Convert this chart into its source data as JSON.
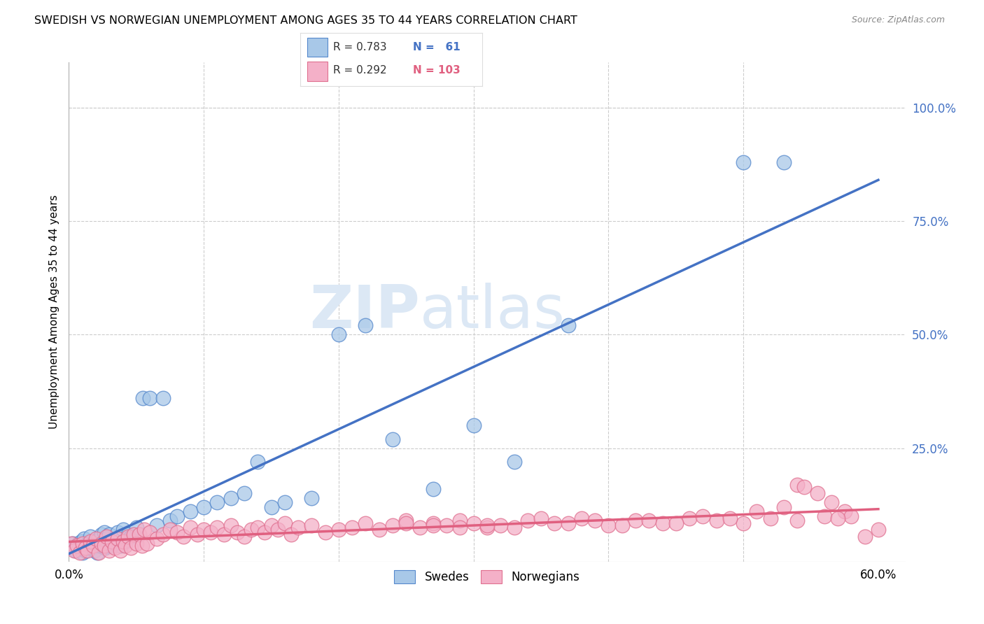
{
  "title": "SWEDISH VS NORWEGIAN UNEMPLOYMENT AMONG AGES 35 TO 44 YEARS CORRELATION CHART",
  "source": "Source: ZipAtlas.com",
  "ylabel": "Unemployment Among Ages 35 to 44 years",
  "xlim": [
    0.0,
    0.62
  ],
  "ylim": [
    0.0,
    1.1
  ],
  "xticks": [
    0.0,
    0.1,
    0.2,
    0.3,
    0.4,
    0.5,
    0.6
  ],
  "xticklabels": [
    "0.0%",
    "",
    "",
    "",
    "",
    "",
    "60.0%"
  ],
  "yticks_right": [
    0.0,
    0.25,
    0.5,
    0.75,
    1.0
  ],
  "yticklabels_right": [
    "",
    "25.0%",
    "50.0%",
    "75.0%",
    "100.0%"
  ],
  "swedish_color": "#a8c8e8",
  "norwegian_color": "#f4b0c8",
  "swedish_edge_color": "#5588cc",
  "norwegian_edge_color": "#e07090",
  "swedish_line_color": "#4472c4",
  "norwegian_line_color": "#e06080",
  "watermark_color": "#dce8f5",
  "swedish_x": [
    0.003,
    0.004,
    0.005,
    0.006,
    0.007,
    0.008,
    0.009,
    0.01,
    0.011,
    0.012,
    0.013,
    0.014,
    0.015,
    0.016,
    0.017,
    0.018,
    0.019,
    0.02,
    0.021,
    0.022,
    0.023,
    0.024,
    0.025,
    0.026,
    0.027,
    0.028,
    0.029,
    0.03,
    0.032,
    0.034,
    0.036,
    0.038,
    0.04,
    0.042,
    0.044,
    0.046,
    0.05,
    0.055,
    0.06,
    0.065,
    0.07,
    0.075,
    0.08,
    0.09,
    0.1,
    0.11,
    0.12,
    0.13,
    0.14,
    0.15,
    0.16,
    0.18,
    0.2,
    0.22,
    0.24,
    0.27,
    0.3,
    0.33,
    0.37,
    0.5,
    0.53
  ],
  "swedish_y": [
    0.04,
    0.03,
    0.025,
    0.035,
    0.04,
    0.03,
    0.045,
    0.02,
    0.05,
    0.025,
    0.03,
    0.04,
    0.035,
    0.055,
    0.03,
    0.04,
    0.025,
    0.045,
    0.02,
    0.05,
    0.035,
    0.06,
    0.04,
    0.065,
    0.03,
    0.05,
    0.035,
    0.06,
    0.035,
    0.04,
    0.065,
    0.035,
    0.07,
    0.045,
    0.06,
    0.055,
    0.075,
    0.36,
    0.36,
    0.08,
    0.36,
    0.09,
    0.1,
    0.11,
    0.12,
    0.13,
    0.14,
    0.15,
    0.22,
    0.12,
    0.13,
    0.14,
    0.5,
    0.52,
    0.27,
    0.16,
    0.3,
    0.22,
    0.52,
    0.88,
    0.88
  ],
  "norwegian_x": [
    0.002,
    0.004,
    0.006,
    0.008,
    0.01,
    0.012,
    0.014,
    0.016,
    0.018,
    0.02,
    0.022,
    0.024,
    0.026,
    0.028,
    0.03,
    0.032,
    0.034,
    0.036,
    0.038,
    0.04,
    0.042,
    0.044,
    0.046,
    0.048,
    0.05,
    0.052,
    0.054,
    0.056,
    0.058,
    0.06,
    0.065,
    0.07,
    0.075,
    0.08,
    0.085,
    0.09,
    0.095,
    0.1,
    0.105,
    0.11,
    0.115,
    0.12,
    0.125,
    0.13,
    0.135,
    0.14,
    0.145,
    0.15,
    0.155,
    0.16,
    0.165,
    0.17,
    0.18,
    0.19,
    0.2,
    0.21,
    0.22,
    0.23,
    0.24,
    0.25,
    0.26,
    0.27,
    0.28,
    0.29,
    0.3,
    0.31,
    0.32,
    0.34,
    0.36,
    0.38,
    0.4,
    0.42,
    0.44,
    0.46,
    0.48,
    0.5,
    0.52,
    0.54,
    0.56,
    0.575,
    0.54,
    0.555,
    0.565,
    0.545,
    0.53,
    0.51,
    0.49,
    0.47,
    0.45,
    0.43,
    0.41,
    0.39,
    0.37,
    0.35,
    0.33,
    0.31,
    0.29,
    0.27,
    0.25,
    0.59,
    0.58,
    0.57,
    0.6
  ],
  "norwegian_y": [
    0.04,
    0.025,
    0.035,
    0.02,
    0.04,
    0.03,
    0.025,
    0.045,
    0.035,
    0.05,
    0.02,
    0.04,
    0.035,
    0.055,
    0.025,
    0.045,
    0.03,
    0.05,
    0.025,
    0.045,
    0.035,
    0.055,
    0.03,
    0.06,
    0.04,
    0.06,
    0.035,
    0.07,
    0.04,
    0.065,
    0.05,
    0.06,
    0.07,
    0.065,
    0.055,
    0.075,
    0.06,
    0.07,
    0.065,
    0.075,
    0.06,
    0.08,
    0.065,
    0.055,
    0.07,
    0.075,
    0.065,
    0.08,
    0.07,
    0.085,
    0.06,
    0.075,
    0.08,
    0.065,
    0.07,
    0.075,
    0.085,
    0.07,
    0.08,
    0.09,
    0.075,
    0.085,
    0.08,
    0.09,
    0.085,
    0.075,
    0.08,
    0.09,
    0.085,
    0.095,
    0.08,
    0.09,
    0.085,
    0.095,
    0.09,
    0.085,
    0.095,
    0.09,
    0.1,
    0.11,
    0.17,
    0.15,
    0.13,
    0.165,
    0.12,
    0.11,
    0.095,
    0.1,
    0.085,
    0.09,
    0.08,
    0.09,
    0.085,
    0.095,
    0.075,
    0.08,
    0.075,
    0.08,
    0.085,
    0.055,
    0.1,
    0.095,
    0.07
  ]
}
